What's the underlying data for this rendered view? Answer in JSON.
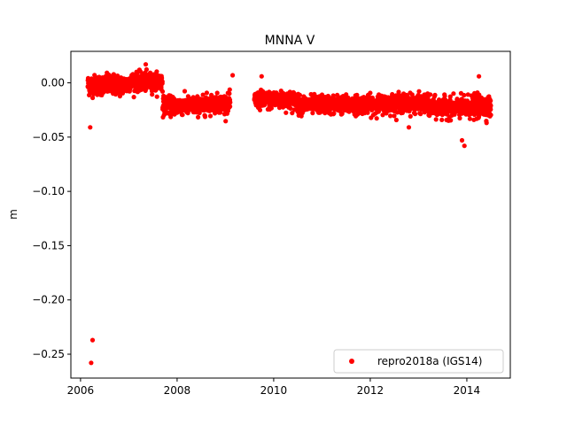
{
  "chart_data": {
    "type": "scatter",
    "title": "MNNA V",
    "xlabel": "",
    "ylabel": "m",
    "xlim": [
      2005.8,
      2014.9
    ],
    "ylim": [
      -0.272,
      0.029
    ],
    "x_ticks": [
      2006,
      2008,
      2010,
      2012,
      2014
    ],
    "x_tick_labels": [
      "2006",
      "2008",
      "2010",
      "2012",
      "2014"
    ],
    "y_ticks": [
      0.0,
      -0.05,
      -0.1,
      -0.15,
      -0.2,
      -0.25
    ],
    "y_tick_labels": [
      "0.00",
      "−0.05",
      "−0.10",
      "−0.15",
      "−0.20",
      "−0.25"
    ],
    "grid": false,
    "legend_position": "lower-right",
    "series": [
      {
        "name": "repro2018a (IGS14)",
        "color": "#ff0000",
        "marker": "point",
        "segments": [
          {
            "x_start": 2006.15,
            "x_end": 2006.6,
            "center": -0.002,
            "spread": 0.01
          },
          {
            "x_start": 2006.6,
            "x_end": 2007.0,
            "center": -0.002,
            "spread": 0.01
          },
          {
            "x_start": 2007.0,
            "x_end": 2007.7,
            "center": 0.001,
            "spread": 0.009
          },
          {
            "x_start": 2007.7,
            "x_end": 2008.6,
            "center": -0.021,
            "spread": 0.009
          },
          {
            "x_start": 2008.6,
            "x_end": 2009.1,
            "center": -0.019,
            "spread": 0.009
          },
          {
            "x_start": 2009.6,
            "x_end": 2010.5,
            "center": -0.016,
            "spread": 0.009
          },
          {
            "x_start": 2010.5,
            "x_end": 2012.2,
            "center": -0.02,
            "spread": 0.009
          },
          {
            "x_start": 2012.2,
            "x_end": 2013.2,
            "center": -0.019,
            "spread": 0.009
          },
          {
            "x_start": 2013.2,
            "x_end": 2014.0,
            "center": -0.023,
            "spread": 0.01
          },
          {
            "x_start": 2014.0,
            "x_end": 2014.5,
            "center": -0.022,
            "spread": 0.011
          }
        ],
        "outliers": [
          {
            "x": 2006.2,
            "y": -0.041
          },
          {
            "x": 2006.25,
            "y": -0.237
          },
          {
            "x": 2006.22,
            "y": -0.258
          },
          {
            "x": 2007.35,
            "y": 0.017
          },
          {
            "x": 2009.15,
            "y": 0.007
          },
          {
            "x": 2009.75,
            "y": 0.006
          },
          {
            "x": 2012.8,
            "y": -0.041
          },
          {
            "x": 2013.95,
            "y": -0.058
          },
          {
            "x": 2013.9,
            "y": -0.053
          },
          {
            "x": 2014.25,
            "y": 0.006
          }
        ]
      }
    ]
  }
}
